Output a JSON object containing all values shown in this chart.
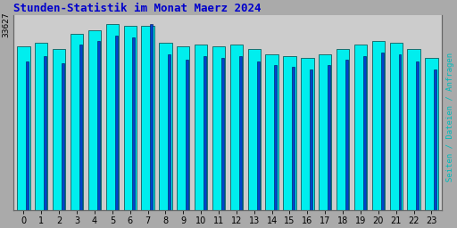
{
  "title": "Stunden-Statistik im Monat Maerz 2024",
  "title_color": "#0000cc",
  "ylabel_right": "Seiten / Dateien / Anfragen",
  "ylabel_right_color": "#00bbbb",
  "categories": [
    0,
    1,
    2,
    3,
    4,
    5,
    6,
    7,
    8,
    9,
    10,
    11,
    12,
    13,
    14,
    15,
    16,
    17,
    18,
    19,
    20,
    21,
    22,
    23
  ],
  "seiten": [
    88,
    90,
    87,
    95,
    97,
    100,
    99,
    99,
    90,
    88,
    89,
    88,
    89,
    87,
    84,
    83,
    82,
    84,
    87,
    89,
    91,
    90,
    87,
    82
  ],
  "anfragen": [
    80,
    83,
    79,
    89,
    91,
    94,
    93,
    100,
    84,
    81,
    83,
    82,
    83,
    80,
    78,
    77,
    76,
    78,
    81,
    83,
    85,
    84,
    80,
    76
  ],
  "bar_color_cyan": "#00eeee",
  "bar_color_blue": "#0044cc",
  "bar_edge_dark": "#004444",
  "background_color": "#aaaaaa",
  "plot_bg_color": "#cccccc",
  "fig_bg_color": "#aaaaaa",
  "border_color": "#888888",
  "ylim": [
    0,
    105
  ],
  "ytick_label": "33627",
  "ytick_pos": 100
}
